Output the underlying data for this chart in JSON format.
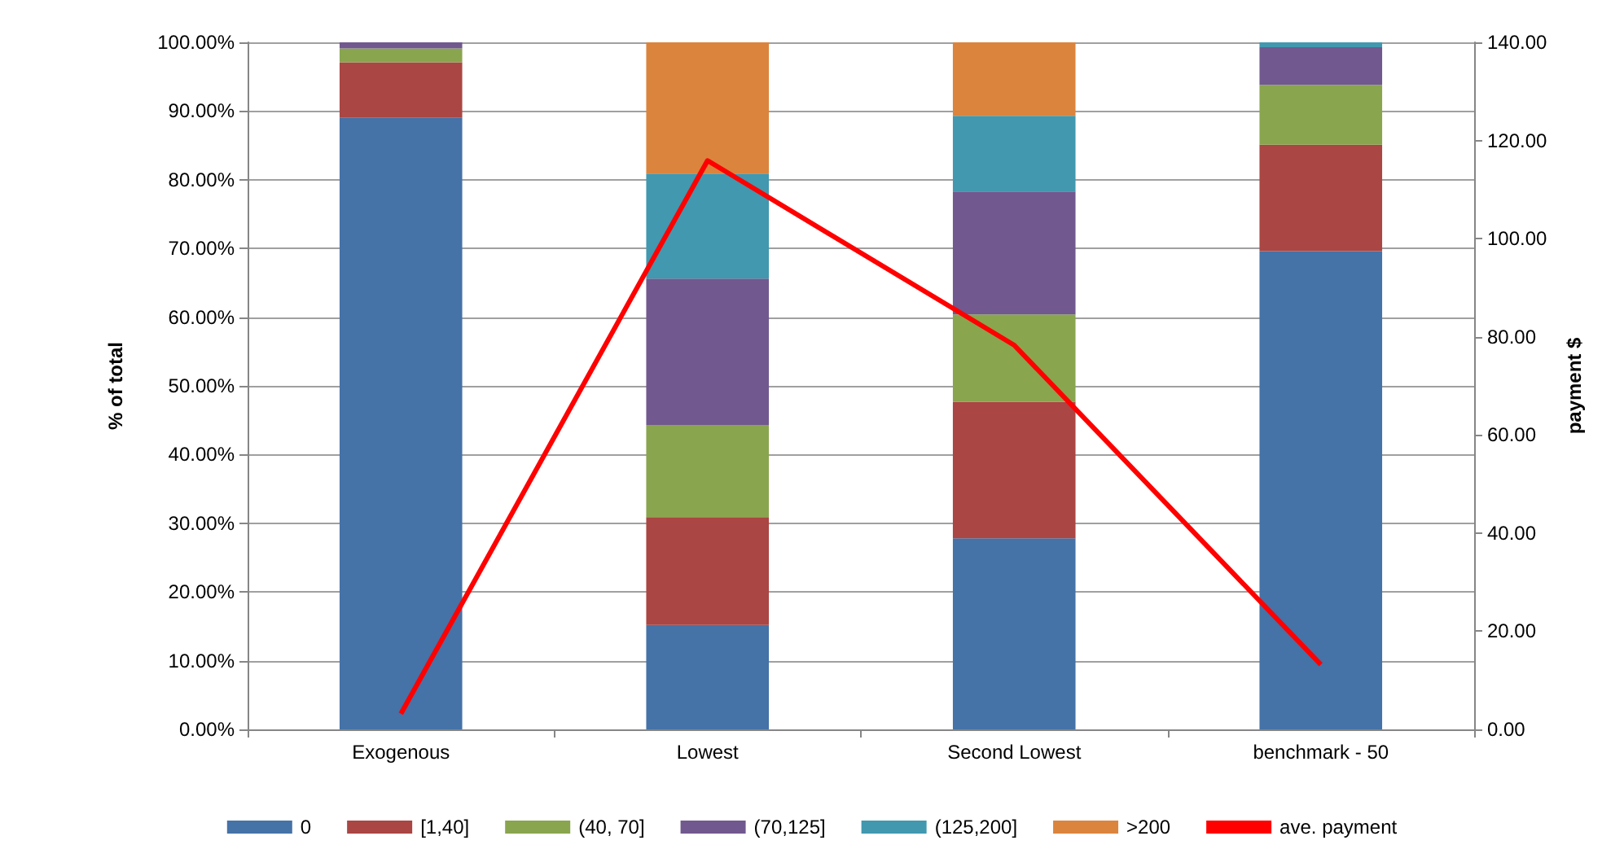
{
  "chart_data": {
    "type": "bar",
    "stacked": true,
    "ylabel": "% of total",
    "y2label": "payment $",
    "categories": [
      "Exogenous",
      "Lowest",
      "Second Lowest",
      "benchmark - 50"
    ],
    "series": [
      {
        "name": "0",
        "color": "#4572a7",
        "values": [
          89.0,
          15.2,
          27.8,
          69.6
        ]
      },
      {
        "name": "[1,40]",
        "color": "#aa4643",
        "values": [
          8.1,
          15.7,
          19.9,
          15.5
        ]
      },
      {
        "name": "(40, 70]",
        "color": "#89a54e",
        "values": [
          2.0,
          13.4,
          12.7,
          8.7
        ]
      },
      {
        "name": "(70,125]",
        "color": "#71588f",
        "values": [
          0.9,
          21.3,
          17.9,
          5.5
        ]
      },
      {
        "name": "(125,200]",
        "color": "#4198af",
        "values": [
          0,
          15.3,
          11.0,
          0.7
        ]
      },
      {
        "name": ">200",
        "color": "#db843d",
        "values": [
          0,
          19.1,
          10.7,
          0
        ]
      },
      {
        "name": "ave. payment",
        "type": "line",
        "axis": "y2",
        "color": "#ff0000",
        "marker": "none",
        "values": [
          3.2,
          115.9,
          78.3,
          13.2
        ]
      }
    ],
    "ylim": [
      0,
      100
    ],
    "yticks": [
      {
        "value": 0,
        "label": "0.00%"
      },
      {
        "value": 10,
        "label": "10.00%"
      },
      {
        "value": 20,
        "label": "20.00%"
      },
      {
        "value": 30,
        "label": "30.00%"
      },
      {
        "value": 40,
        "label": "40.00%"
      },
      {
        "value": 50,
        "label": "50.00%"
      },
      {
        "value": 60,
        "label": "60.00%"
      },
      {
        "value": 70,
        "label": "70.00%"
      },
      {
        "value": 80,
        "label": "80.00%"
      },
      {
        "value": 90,
        "label": "90.00%"
      },
      {
        "value": 100,
        "label": "100.00%"
      }
    ],
    "y2lim": [
      0,
      140
    ],
    "y2ticks": [
      {
        "value": 0,
        "label": "0.00"
      },
      {
        "value": 20,
        "label": "20.00"
      },
      {
        "value": 40,
        "label": "40.00"
      },
      {
        "value": 60,
        "label": "60.00"
      },
      {
        "value": 80,
        "label": "80.00"
      },
      {
        "value": 100,
        "label": "100.00"
      },
      {
        "value": 120,
        "label": "120.00"
      },
      {
        "value": 140,
        "label": "140.00"
      }
    ],
    "grid": "y",
    "legend": "bottom"
  }
}
